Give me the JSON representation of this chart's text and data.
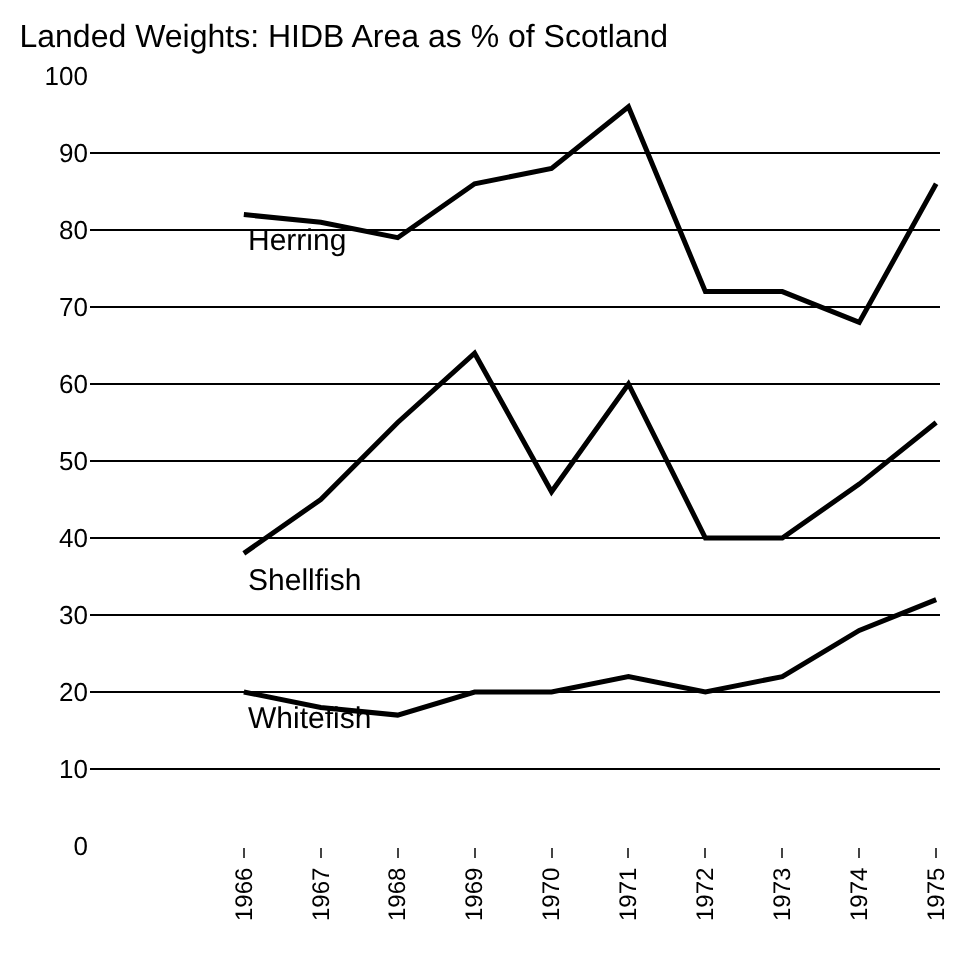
{
  "chart_data": {
    "type": "line",
    "title": "Landed Weights: HIDB Area as % of Scotland",
    "categories": [
      "1966",
      "1967",
      "1968",
      "1969",
      "1970",
      "1971",
      "1972",
      "1973",
      "1974",
      "1975"
    ],
    "series": [
      {
        "name": "Herring",
        "color": "#000000",
        "values": [
          82,
          81,
          79,
          86,
          88,
          96,
          72,
          72,
          68,
          86
        ]
      },
      {
        "name": "Shellfish",
        "color": "#000000",
        "values": [
          38,
          45,
          55,
          64,
          46,
          60,
          40,
          40,
          47,
          55
        ]
      },
      {
        "name": "Whitefish",
        "color": "#000000",
        "values": [
          20,
          18,
          17,
          20,
          20,
          22,
          20,
          22,
          28,
          32
        ]
      }
    ],
    "ylim": [
      0,
      100
    ],
    "yticks": [
      0,
      10,
      20,
      30,
      40,
      50,
      60,
      70,
      80,
      90,
      100
    ],
    "grid": "y",
    "legend": false,
    "marker": "none",
    "line_style": "solid"
  }
}
